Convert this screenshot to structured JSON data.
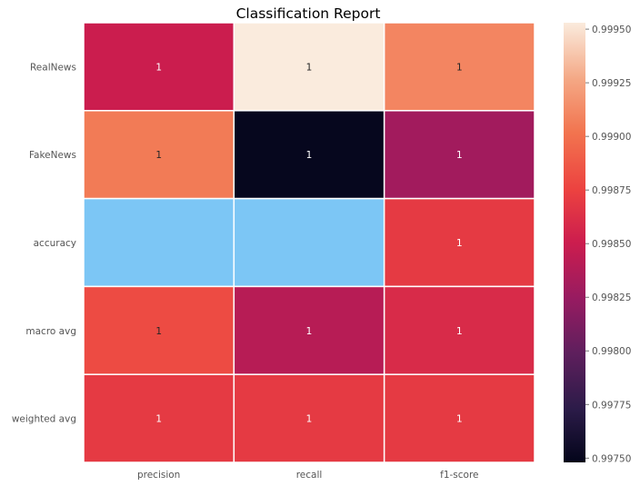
{
  "chart_data": {
    "type": "heatmap",
    "title": "Classification Report",
    "xlabel": "",
    "ylabel": "",
    "rows": [
      "RealNews",
      "FakeNews",
      "accuracy",
      "macro avg",
      "weighted avg"
    ],
    "columns": [
      "precision",
      "recall",
      "f1-score"
    ],
    "values": [
      [
        0.9985,
        0.99953,
        0.9991
      ],
      [
        0.99905,
        0.9975,
        0.9983
      ],
      [
        null,
        null,
        0.9987
      ],
      [
        0.9988,
        0.9984,
        0.9986
      ],
      [
        0.9987,
        0.9987,
        0.9987
      ]
    ],
    "annotations": [
      [
        "1",
        "1",
        "1"
      ],
      [
        "1",
        "1",
        "1"
      ],
      [
        "",
        "",
        "1"
      ],
      [
        "1",
        "1",
        "1"
      ],
      [
        "1",
        "1",
        "1"
      ]
    ],
    "masked_color": "#7cc6f5",
    "colormap": "rocket",
    "colorbar": {
      "vmin": 0.99748,
      "vmax": 0.99953,
      "ticks": [
        0.9975,
        0.99775,
        0.998,
        0.99825,
        0.9985,
        0.99875,
        0.999,
        0.99925,
        0.9995
      ],
      "tick_labels": [
        "0.99750",
        "0.99775",
        "0.99800",
        "0.99825",
        "0.99850",
        "0.99875",
        "0.99900",
        "0.99925",
        "0.99950"
      ]
    }
  }
}
